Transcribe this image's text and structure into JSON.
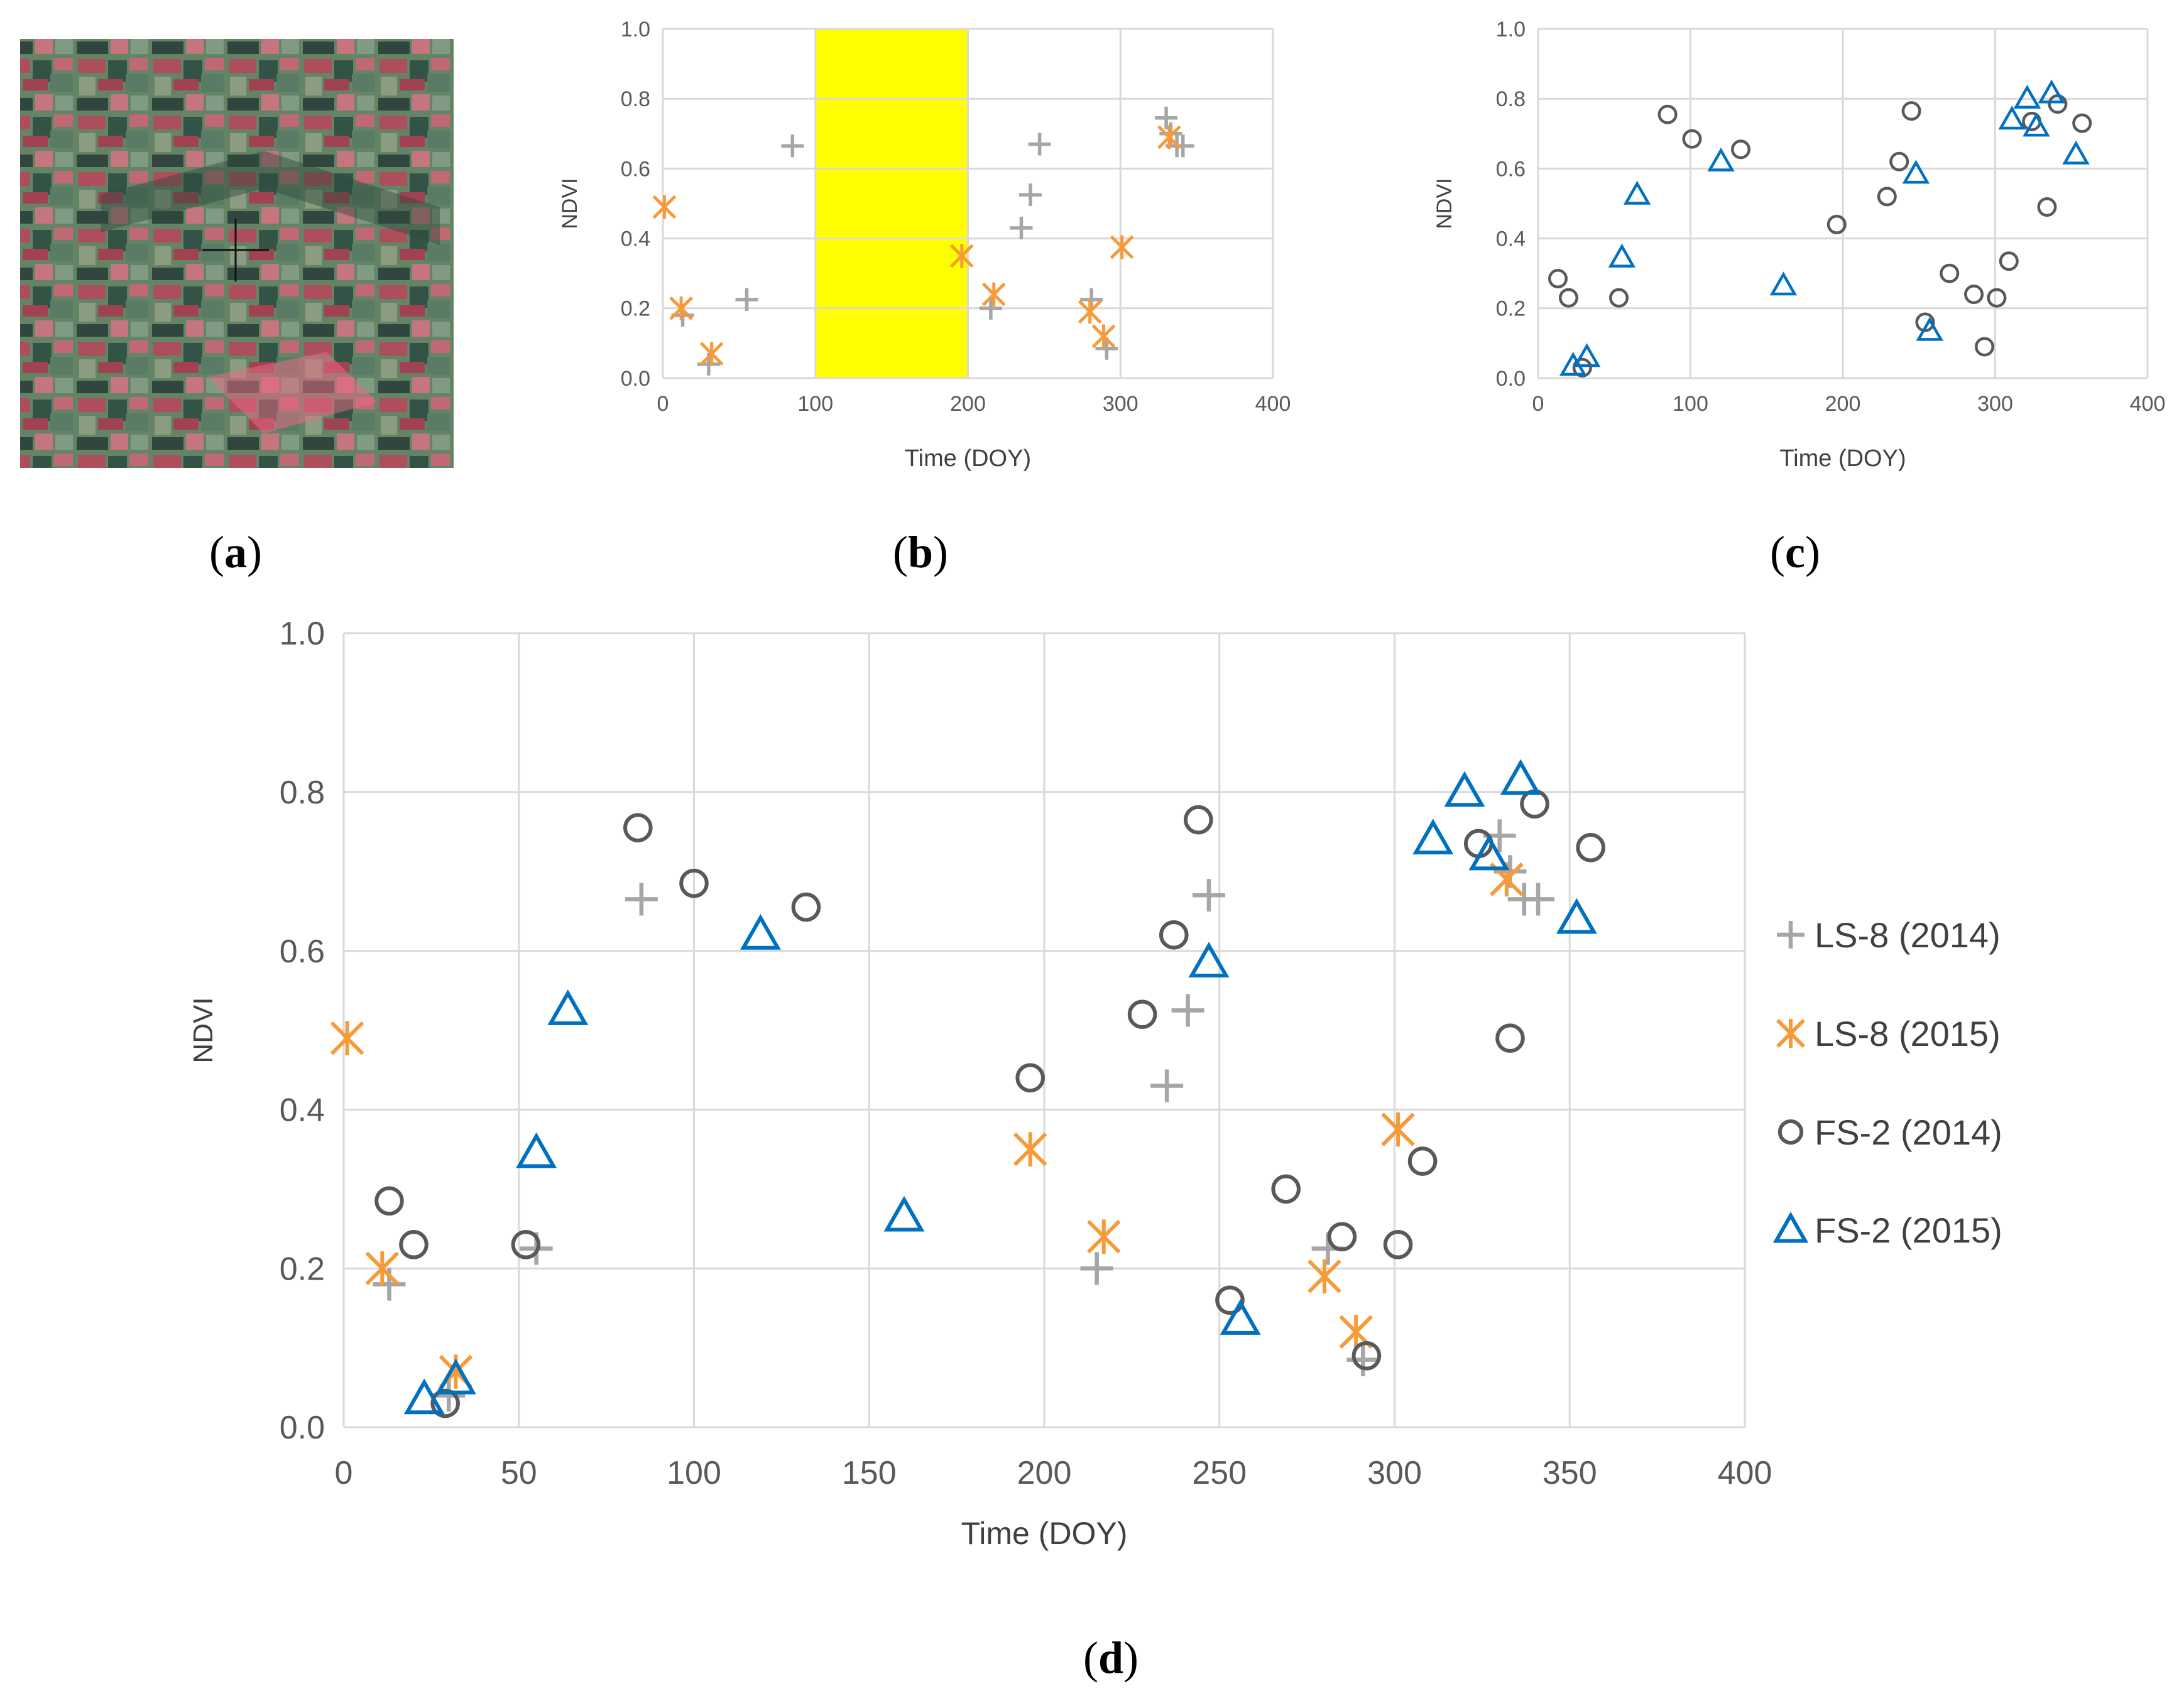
{
  "panel_labels": {
    "a": {
      "open": "(",
      "letter": "a",
      "close": ")"
    },
    "b": {
      "open": "(",
      "letter": "b",
      "close": ")"
    },
    "c": {
      "open": "(",
      "letter": "c",
      "close": ")"
    },
    "d": {
      "open": "(",
      "letter": "d",
      "close": ")"
    }
  },
  "satellite_image": {
    "description_icon": "satellite-field-image",
    "crosshair_icon": "crosshair-icon"
  },
  "colors": {
    "ls8_2014": "#a6a6a6",
    "ls8_2015": "#f79a3a",
    "fs2_2014": "#595959",
    "fs2_2015": "#0070c0",
    "highlight": "#ffff00",
    "grid": "#d9d9d9"
  },
  "chart_data": [
    {
      "id": "b",
      "type": "scatter",
      "xlabel": "Time (DOY)",
      "ylabel": "NDVI",
      "xlim": [
        0,
        400
      ],
      "ylim": [
        0,
        1.0
      ],
      "xticks": [
        "0",
        "100",
        "200",
        "300",
        "400"
      ],
      "yticks": [
        "0.0",
        "0.2",
        "0.4",
        "0.6",
        "0.8",
        "1.0"
      ],
      "highlight_band": [
        100,
        200
      ],
      "grid": true,
      "series": [
        {
          "key": "ls8_2014",
          "marker": "plus",
          "points": [
            [
              13,
              0.18
            ],
            [
              30,
              0.04
            ],
            [
              55,
              0.225
            ],
            [
              85,
              0.665
            ],
            [
              215,
              0.2
            ],
            [
              235,
              0.43
            ],
            [
              241,
              0.525
            ],
            [
              247,
              0.67
            ],
            [
              281,
              0.225
            ],
            [
              291,
              0.085
            ],
            [
              330,
              0.745
            ],
            [
              333,
              0.7
            ],
            [
              337,
              0.665
            ],
            [
              341,
              0.665
            ]
          ]
        },
        {
          "key": "ls8_2015",
          "marker": "asterisk",
          "points": [
            [
              1,
              0.49
            ],
            [
              12,
              0.2
            ],
            [
              32,
              0.07
            ],
            [
              196,
              0.35
            ],
            [
              217,
              0.24
            ],
            [
              280,
              0.19
            ],
            [
              289,
              0.12
            ],
            [
              301,
              0.375
            ],
            [
              332,
              0.69
            ]
          ]
        }
      ]
    },
    {
      "id": "c",
      "type": "scatter",
      "xlabel": "Time (DOY)",
      "ylabel": "NDVI",
      "xlim": [
        0,
        400
      ],
      "ylim": [
        0,
        1.0
      ],
      "xticks": [
        "0",
        "100",
        "200",
        "300",
        "400"
      ],
      "yticks": [
        "0.0",
        "0.2",
        "0.4",
        "0.6",
        "0.8",
        "1.0"
      ],
      "grid": true,
      "series": [
        {
          "key": "fs2_2014",
          "marker": "circle",
          "points": [
            [
              13,
              0.285
            ],
            [
              20,
              0.23
            ],
            [
              29,
              0.03
            ],
            [
              53,
              0.23
            ],
            [
              85,
              0.755
            ],
            [
              101,
              0.685
            ],
            [
              133,
              0.655
            ],
            [
              196,
              0.44
            ],
            [
              229,
              0.52
            ],
            [
              237,
              0.62
            ],
            [
              245,
              0.765
            ],
            [
              254,
              0.16
            ],
            [
              270,
              0.3
            ],
            [
              286,
              0.24
            ],
            [
              301,
              0.23
            ],
            [
              309,
              0.335
            ],
            [
              293,
              0.09
            ],
            [
              324,
              0.735
            ],
            [
              334,
              0.49
            ],
            [
              341,
              0.785
            ],
            [
              357,
              0.73
            ]
          ]
        },
        {
          "key": "fs2_2015",
          "marker": "triangle",
          "points": [
            [
              23,
              0.035
            ],
            [
              32,
              0.06
            ],
            [
              55,
              0.345
            ],
            [
              65,
              0.525
            ],
            [
              120,
              0.62
            ],
            [
              161,
              0.265
            ],
            [
              248,
              0.585
            ],
            [
              257,
              0.135
            ],
            [
              311,
              0.74
            ],
            [
              321,
              0.8
            ],
            [
              327,
              0.72
            ],
            [
              337,
              0.815
            ],
            [
              353,
              0.64
            ]
          ]
        }
      ]
    },
    {
      "id": "d",
      "type": "scatter",
      "xlabel": "Time (DOY)",
      "ylabel": "NDVI",
      "xlim": [
        0,
        400
      ],
      "ylim": [
        0,
        1.0
      ],
      "xticks": [
        "0",
        "50",
        "100",
        "150",
        "200",
        "250",
        "300",
        "350",
        "400"
      ],
      "yticks": [
        "0.0",
        "0.2",
        "0.4",
        "0.6",
        "0.8",
        "1.0"
      ],
      "grid": true,
      "legend_position": "right",
      "series": [
        {
          "key": "ls8_2014",
          "name": "LS-8 (2014)",
          "marker": "plus",
          "points": [
            [
              13,
              0.18
            ],
            [
              30,
              0.04
            ],
            [
              55,
              0.225
            ],
            [
              85,
              0.665
            ],
            [
              215,
              0.2
            ],
            [
              235,
              0.43
            ],
            [
              241,
              0.525
            ],
            [
              247,
              0.67
            ],
            [
              281,
              0.225
            ],
            [
              291,
              0.085
            ],
            [
              330,
              0.745
            ],
            [
              333,
              0.7
            ],
            [
              337,
              0.665
            ],
            [
              341,
              0.665
            ]
          ]
        },
        {
          "key": "ls8_2015",
          "name": "LS-8 (2015)",
          "marker": "asterisk",
          "points": [
            [
              1,
              0.49
            ],
            [
              11,
              0.2
            ],
            [
              32,
              0.07
            ],
            [
              196,
              0.35
            ],
            [
              217,
              0.24
            ],
            [
              280,
              0.19
            ],
            [
              289,
              0.12
            ],
            [
              301,
              0.375
            ],
            [
              332,
              0.69
            ]
          ]
        },
        {
          "key": "fs2_2014",
          "name": "FS-2 (2014)",
          "marker": "circle",
          "points": [
            [
              13,
              0.285
            ],
            [
              20,
              0.23
            ],
            [
              29,
              0.03
            ],
            [
              52,
              0.23
            ],
            [
              84,
              0.755
            ],
            [
              100,
              0.685
            ],
            [
              132,
              0.655
            ],
            [
              196,
              0.44
            ],
            [
              228,
              0.52
            ],
            [
              237,
              0.62
            ],
            [
              244,
              0.765
            ],
            [
              253,
              0.16
            ],
            [
              269,
              0.3
            ],
            [
              285,
              0.24
            ],
            [
              301,
              0.23
            ],
            [
              308,
              0.335
            ],
            [
              292,
              0.09
            ],
            [
              324,
              0.735
            ],
            [
              333,
              0.49
            ],
            [
              340,
              0.785
            ],
            [
              356,
              0.73
            ]
          ]
        },
        {
          "key": "fs2_2015",
          "name": "FS-2 (2015)",
          "marker": "triangle",
          "points": [
            [
              23,
              0.035
            ],
            [
              32,
              0.06
            ],
            [
              55,
              0.345
            ],
            [
              64,
              0.525
            ],
            [
              119,
              0.62
            ],
            [
              160,
              0.265
            ],
            [
              247,
              0.585
            ],
            [
              256,
              0.135
            ],
            [
              311,
              0.74
            ],
            [
              320,
              0.8
            ],
            [
              327,
              0.72
            ],
            [
              336,
              0.815
            ],
            [
              352,
              0.64
            ]
          ]
        }
      ]
    }
  ]
}
